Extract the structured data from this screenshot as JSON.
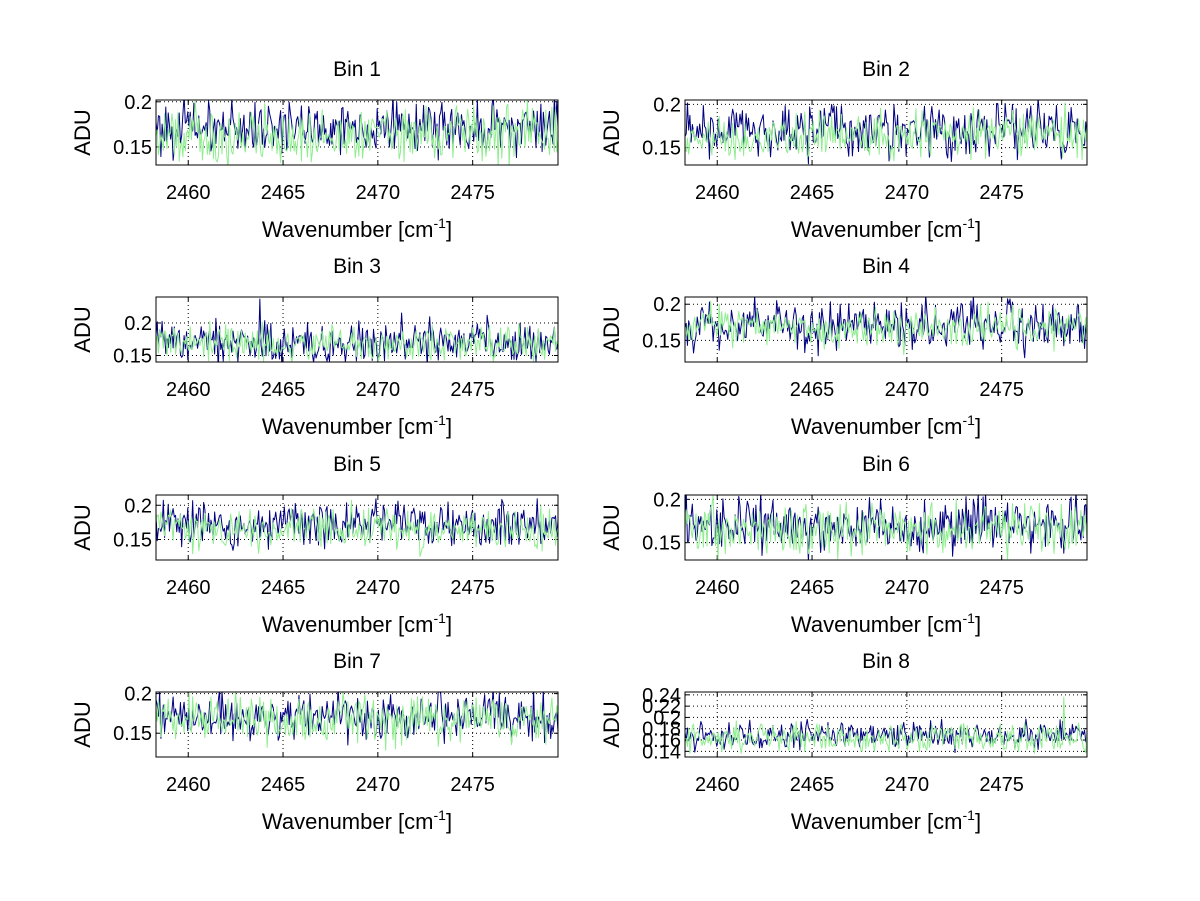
{
  "chart_data": [
    {
      "type": "line",
      "title": "Bin 1",
      "xlabel": "Wavenumber [cm",
      "xlabel_sup": "-1",
      "xlabel_end": "]",
      "ylabel": "ADU",
      "xlim": [
        2458.3,
        2479.5
      ],
      "ylim": [
        0.13,
        0.202
      ],
      "xticks": [
        2460,
        2465,
        2470,
        2475
      ],
      "yticks": [
        0.15,
        0.2
      ],
      "ytick_labels": [
        "0.15",
        "0.2"
      ],
      "grid": true,
      "points": 330,
      "series": [
        {
          "color": "#000080",
          "mean": 0.172,
          "spread": 0.032,
          "seed": 101
        },
        {
          "color": "#90EE90",
          "mean": 0.163,
          "spread": 0.034,
          "seed": 102
        }
      ]
    },
    {
      "type": "line",
      "title": "Bin 2",
      "xlabel": "Wavenumber [cm",
      "xlabel_sup": "-1",
      "xlabel_end": "]",
      "ylabel": "ADU",
      "xlim": [
        2458.3,
        2479.5
      ],
      "ylim": [
        0.13,
        0.205
      ],
      "xticks": [
        2460,
        2465,
        2470,
        2475
      ],
      "yticks": [
        0.15,
        0.2
      ],
      "ytick_labels": [
        "0.15",
        "0.2"
      ],
      "grid": true,
      "points": 330,
      "series": [
        {
          "color": "#000080",
          "mean": 0.17,
          "spread": 0.034,
          "seed": 201
        },
        {
          "color": "#90EE90",
          "mean": 0.164,
          "spread": 0.03,
          "seed": 202
        }
      ]
    },
    {
      "type": "line",
      "title": "Bin 3",
      "xlabel": "Wavenumber [cm",
      "xlabel_sup": "-1",
      "xlabel_end": "]",
      "ylabel": "ADU",
      "xlim": [
        2458.3,
        2479.5
      ],
      "ylim": [
        0.14,
        0.24
      ],
      "xticks": [
        2460,
        2465,
        2470,
        2475
      ],
      "yticks": [
        0.15,
        0.2
      ],
      "ytick_labels": [
        "0.15",
        "0.2"
      ],
      "grid": true,
      "points": 330,
      "series": [
        {
          "color": "#000080",
          "mean": 0.17,
          "spread": 0.036,
          "seed": 301,
          "spike_at": 2463.8,
          "spike_value": 0.237
        },
        {
          "color": "#90EE90",
          "mean": 0.168,
          "spread": 0.03,
          "seed": 302
        }
      ]
    },
    {
      "type": "line",
      "title": "Bin 4",
      "xlabel": "Wavenumber [cm",
      "xlabel_sup": "-1",
      "xlabel_end": "]",
      "ylabel": "ADU",
      "xlim": [
        2458.3,
        2479.5
      ],
      "ylim": [
        0.12,
        0.21
      ],
      "xticks": [
        2460,
        2465,
        2470,
        2475
      ],
      "yticks": [
        0.15,
        0.2
      ],
      "ytick_labels": [
        "0.15",
        "0.2"
      ],
      "grid": true,
      "points": 330,
      "series": [
        {
          "color": "#000080",
          "mean": 0.17,
          "spread": 0.038,
          "seed": 401
        },
        {
          "color": "#90EE90",
          "mean": 0.168,
          "spread": 0.032,
          "seed": 402
        }
      ]
    },
    {
      "type": "line",
      "title": "Bin 5",
      "xlabel": "Wavenumber [cm",
      "xlabel_sup": "-1",
      "xlabel_end": "]",
      "ylabel": "ADU",
      "xlim": [
        2458.3,
        2479.5
      ],
      "ylim": [
        0.12,
        0.215
      ],
      "xticks": [
        2460,
        2465,
        2470,
        2475
      ],
      "yticks": [
        0.15,
        0.2
      ],
      "ytick_labels": [
        "0.15",
        "0.2"
      ],
      "grid": true,
      "points": 330,
      "series": [
        {
          "color": "#000080",
          "mean": 0.172,
          "spread": 0.034,
          "seed": 501
        },
        {
          "color": "#90EE90",
          "mean": 0.165,
          "spread": 0.034,
          "seed": 502
        }
      ]
    },
    {
      "type": "line",
      "title": "Bin 6",
      "xlabel": "Wavenumber [cm",
      "xlabel_sup": "-1",
      "xlabel_end": "]",
      "ylabel": "ADU",
      "xlim": [
        2458.3,
        2479.5
      ],
      "ylim": [
        0.13,
        0.205
      ],
      "xticks": [
        2460,
        2465,
        2470,
        2475
      ],
      "yticks": [
        0.15,
        0.2
      ],
      "ytick_labels": [
        "0.15",
        "0.2"
      ],
      "grid": true,
      "points": 330,
      "series": [
        {
          "color": "#000080",
          "mean": 0.17,
          "spread": 0.034,
          "seed": 601
        },
        {
          "color": "#90EE90",
          "mean": 0.165,
          "spread": 0.032,
          "seed": 602
        }
      ]
    },
    {
      "type": "line",
      "title": "Bin 7",
      "xlabel": "Wavenumber [cm",
      "xlabel_sup": "-1",
      "xlabel_end": "]",
      "ylabel": "ADU",
      "xlim": [
        2458.3,
        2479.5
      ],
      "ylim": [
        0.12,
        0.202
      ],
      "xticks": [
        2460,
        2465,
        2470,
        2475
      ],
      "yticks": [
        0.15,
        0.2
      ],
      "ytick_labels": [
        "0.15",
        "0.2"
      ],
      "grid": true,
      "points": 330,
      "series": [
        {
          "color": "#000080",
          "mean": 0.172,
          "spread": 0.034,
          "seed": 701
        },
        {
          "color": "#90EE90",
          "mean": 0.168,
          "spread": 0.032,
          "seed": 702
        }
      ]
    },
    {
      "type": "line",
      "title": "Bin 8",
      "xlabel": "Wavenumber [cm",
      "xlabel_sup": "-1",
      "xlabel_end": "]",
      "ylabel": "ADU",
      "xlim": [
        2458.3,
        2479.5
      ],
      "ylim": [
        0.13,
        0.245
      ],
      "xticks": [
        2460,
        2465,
        2470,
        2475
      ],
      "yticks": [
        0.14,
        0.16,
        0.18,
        0.2,
        0.22,
        0.24
      ],
      "ytick_labels": [
        "0.14",
        "0.16",
        "0.18",
        "0.2",
        "0.22",
        "0.24"
      ],
      "grid": true,
      "points": 330,
      "series": [
        {
          "color": "#000080",
          "mean": 0.168,
          "spread": 0.026,
          "seed": 801
        },
        {
          "color": "#90EE90",
          "mean": 0.162,
          "spread": 0.026,
          "seed": 802,
          "spike_at": 2478.3,
          "spike_value": 0.236
        }
      ]
    }
  ]
}
